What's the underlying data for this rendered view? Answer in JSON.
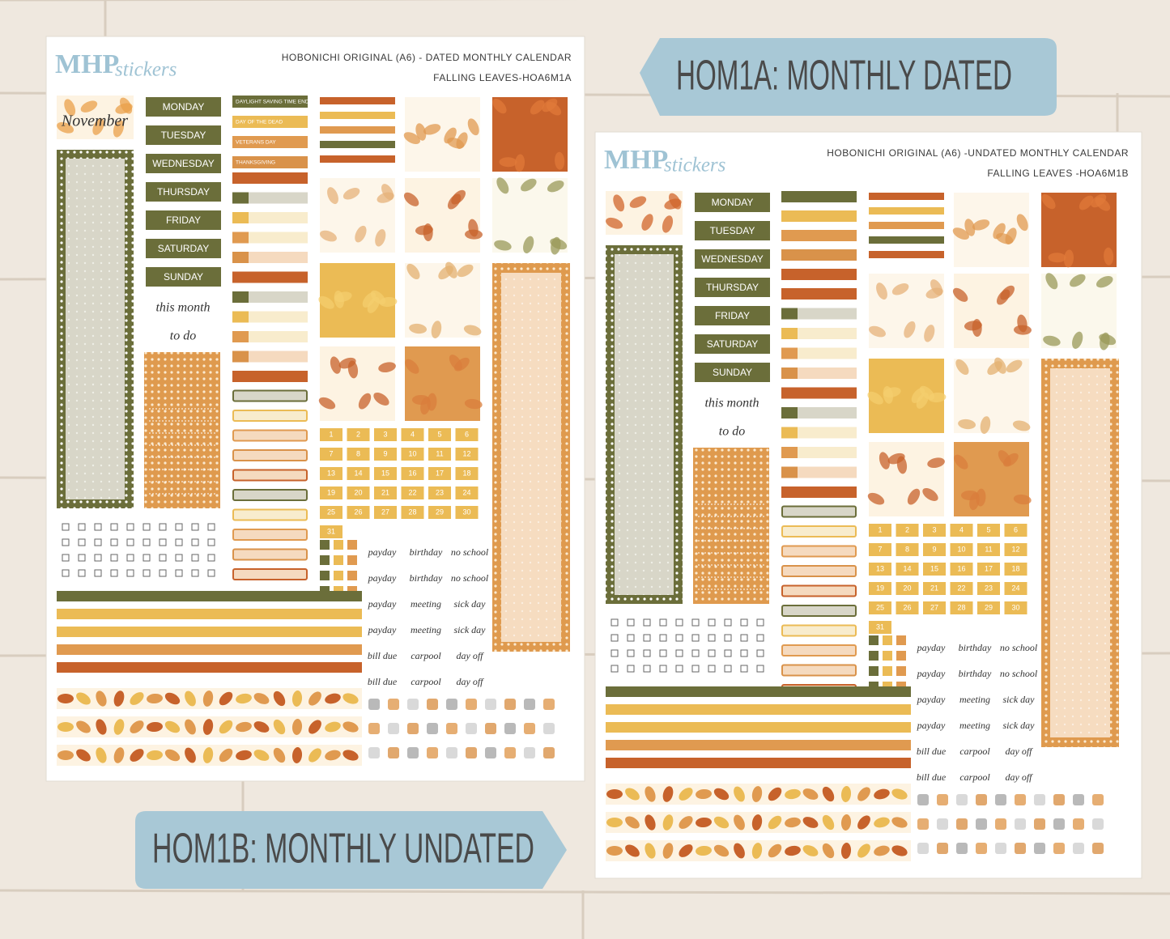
{
  "banners": {
    "dated": "HOM1A: MONTHLY DATED",
    "undated": "HOM1B: MONTHLY UNDATED"
  },
  "sheets": [
    {
      "brand": {
        "bold": "MHP",
        "script": "stickers"
      },
      "title": "HOBONICHI ORIGINAL (A6) - DATED MONTHLY CALENDAR",
      "subtitle": "FALLING LEAVES-HOA6M1A",
      "month": "November",
      "days": [
        "MONDAY",
        "TUESDAY",
        "WEDNESDAY",
        "THURSDAY",
        "FRIDAY",
        "SATURDAY",
        "SUNDAY"
      ],
      "todo": [
        "this month",
        "to do"
      ],
      "holidays": [
        "DAYLIGHT SAVING TIME END",
        "DAY OF THE DEAD",
        "VETERANS DAY",
        "THANKSGIVING"
      ],
      "dates": [
        "1",
        "2",
        "3",
        "4",
        "5",
        "6",
        "7",
        "8",
        "9",
        "10",
        "11",
        "12",
        "13",
        "14",
        "15",
        "16",
        "17",
        "18",
        "19",
        "20",
        "21",
        "22",
        "23",
        "24",
        "25",
        "26",
        "27",
        "28",
        "29",
        "30",
        "31"
      ],
      "labels": [
        [
          "payday",
          "birthday",
          "no school"
        ],
        [
          "payday",
          "birthday",
          "no school"
        ],
        [
          "payday",
          "meeting",
          "sick day"
        ],
        [
          "payday",
          "meeting",
          "sick day"
        ],
        [
          "bill due",
          "carpool",
          "day off"
        ],
        [
          "bill due",
          "carpool",
          "day off"
        ]
      ]
    },
    {
      "brand": {
        "bold": "MHP",
        "script": "stickers"
      },
      "title": "HOBONICHI ORIGINAL (A6) -UNDATED MONTHLY CALENDAR",
      "subtitle": "FALLING LEAVES -HOA6M1B",
      "days": [
        "MONDAY",
        "TUESDAY",
        "WEDNESDAY",
        "THURSDAY",
        "FRIDAY",
        "SATURDAY",
        "SUNDAY"
      ],
      "todo": [
        "this month",
        "to do"
      ],
      "dates": [
        "1",
        "2",
        "3",
        "4",
        "5",
        "6",
        "7",
        "8",
        "9",
        "10",
        "11",
        "12",
        "13",
        "14",
        "15",
        "16",
        "17",
        "18",
        "19",
        "20",
        "21",
        "22",
        "23",
        "24",
        "25",
        "26",
        "27",
        "28",
        "29",
        "30",
        "31"
      ],
      "labels": [
        [
          "payday",
          "birthday",
          "no school"
        ],
        [
          "payday",
          "birthday",
          "no school"
        ],
        [
          "payday",
          "meeting",
          "sick day"
        ],
        [
          "payday",
          "meeting",
          "sick day"
        ],
        [
          "bill due",
          "carpool",
          "day off"
        ],
        [
          "bill due",
          "carpool",
          "day off"
        ]
      ]
    }
  ]
}
